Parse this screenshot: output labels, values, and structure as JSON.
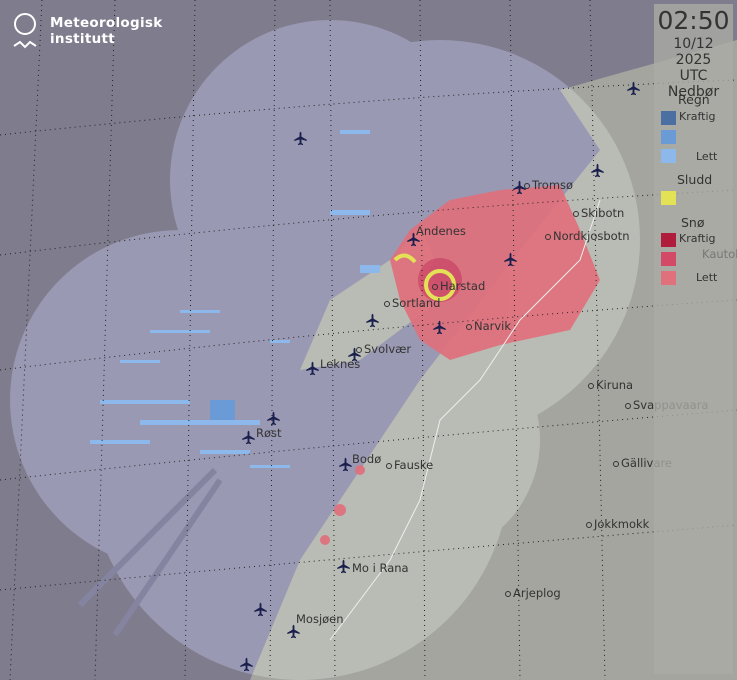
{
  "brand": {
    "line1": "Meteorologisk",
    "line2": "institutt"
  },
  "legend": {
    "time": "02:50",
    "date": "10/12 2025",
    "timezone": "UTC",
    "title": "Nedbør",
    "sections": [
      {
        "label": "Regn",
        "heavy_label": "Kraftig",
        "light_label": "Lett",
        "colors": [
          "#4a6fa0",
          "#6b9bd6",
          "#8cb8ec"
        ]
      },
      {
        "label": "Sludd",
        "colors": [
          "#e3e256"
        ]
      },
      {
        "label": "Snø",
        "heavy_label": "Kraftig",
        "light_label": "Lett",
        "colors": [
          "#b01c3c",
          "#d24a66",
          "#e0707c"
        ]
      }
    ]
  },
  "places": [
    "Tromsø",
    "Skibotn",
    "Nordkjosbotn",
    "Andenes",
    "Harstad",
    "Sortland",
    "Narvik",
    "Svolvær",
    "Leknes",
    "Røst",
    "Bodø",
    "Fauske",
    "Kiruna",
    "Svappavaara",
    "Gällivare",
    "Jokkmokk",
    "Mo i Rana",
    "Arjeplog",
    "Mosjøen",
    "Kautoke"
  ],
  "colors": {
    "background": "#7e7c8d",
    "radar_coverage": "#9a99b3",
    "land": "#b9bcb4",
    "land_outside": "#a3a59e"
  }
}
